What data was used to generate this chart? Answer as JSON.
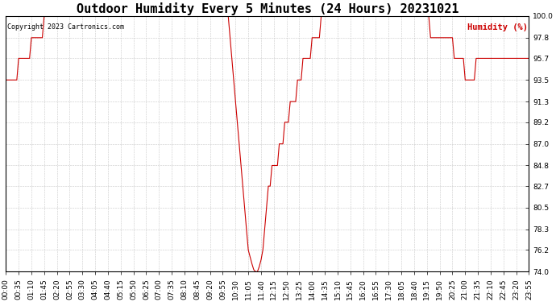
{
  "title": "Outdoor Humidity Every 5 Minutes (24 Hours) 20231021",
  "copyright": "Copyright 2023 Cartronics.com",
  "legend_label": "Humidity (%)",
  "ylim": [
    74.0,
    100.0
  ],
  "yticks": [
    74.0,
    76.2,
    78.3,
    80.5,
    82.7,
    84.8,
    87.0,
    89.2,
    91.3,
    93.5,
    95.7,
    97.8,
    100.0
  ],
  "line_color": "#cc0000",
  "bg_color": "#ffffff",
  "grid_color": "#bbbbbb",
  "title_fontsize": 11,
  "tick_fontsize": 6.5,
  "xtick_step": 7,
  "humidity_data": [
    93.5,
    93.5,
    93.5,
    93.5,
    93.5,
    93.5,
    93.5,
    95.7,
    95.7,
    95.7,
    95.7,
    95.7,
    95.7,
    95.7,
    97.8,
    97.8,
    97.8,
    97.8,
    97.8,
    97.8,
    97.8,
    100.0,
    100.0,
    100.0,
    100.0,
    100.0,
    100.0,
    100.0,
    100.0,
    100.0,
    100.0,
    100.0,
    100.0,
    100.0,
    100.0,
    100.0,
    100.0,
    100.0,
    100.0,
    100.0,
    100.0,
    100.0,
    100.0,
    100.0,
    100.0,
    100.0,
    100.0,
    100.0,
    100.0,
    100.0,
    100.0,
    100.0,
    100.0,
    100.0,
    100.0,
    100.0,
    100.0,
    100.0,
    100.0,
    100.0,
    100.0,
    100.0,
    100.0,
    100.0,
    100.0,
    100.0,
    100.0,
    100.0,
    100.0,
    100.0,
    100.0,
    100.0,
    100.0,
    100.0,
    100.0,
    100.0,
    100.0,
    100.0,
    100.0,
    100.0,
    100.0,
    100.0,
    100.0,
    100.0,
    100.0,
    100.0,
    100.0,
    100.0,
    100.0,
    100.0,
    100.0,
    100.0,
    100.0,
    100.0,
    100.0,
    100.0,
    100.0,
    100.0,
    100.0,
    100.0,
    100.0,
    100.0,
    100.0,
    100.0,
    100.0,
    100.0,
    100.0,
    100.0,
    100.0,
    100.0,
    100.0,
    100.0,
    100.0,
    100.0,
    100.0,
    100.0,
    100.0,
    100.0,
    100.0,
    100.0,
    100.0,
    100.0,
    100.0,
    97.8,
    95.7,
    93.5,
    91.3,
    89.2,
    87.0,
    84.8,
    82.7,
    80.5,
    78.3,
    76.2,
    75.5,
    74.8,
    74.2,
    74.0,
    74.0,
    74.5,
    75.2,
    76.2,
    78.3,
    80.5,
    82.7,
    82.7,
    84.8,
    84.8,
    84.8,
    84.8,
    87.0,
    87.0,
    87.0,
    89.2,
    89.2,
    89.2,
    91.3,
    91.3,
    91.3,
    91.3,
    93.5,
    93.5,
    93.5,
    95.7,
    95.7,
    95.7,
    95.7,
    95.7,
    97.8,
    97.8,
    97.8,
    97.8,
    97.8,
    100.0,
    100.0,
    100.0,
    100.0,
    100.0,
    100.0,
    100.0,
    100.0,
    100.0,
    100.0,
    100.0,
    100.0,
    100.0,
    100.0,
    100.0,
    100.0,
    100.0,
    100.0,
    100.0,
    100.0,
    100.0,
    100.0,
    100.0,
    100.0,
    100.0,
    100.0,
    100.0,
    100.0,
    100.0,
    100.0,
    100.0,
    100.0,
    100.0,
    100.0,
    100.0,
    100.0,
    100.0,
    100.0,
    100.0,
    100.0,
    100.0,
    100.0,
    100.0,
    100.0,
    100.0,
    100.0,
    100.0,
    100.0,
    100.0,
    100.0,
    100.0,
    100.0,
    100.0,
    100.0,
    100.0,
    100.0,
    100.0,
    100.0,
    100.0,
    100.0,
    97.8,
    97.8,
    97.8,
    97.8,
    97.8,
    97.8,
    97.8,
    97.8,
    97.8,
    97.8,
    97.8,
    97.8,
    97.8,
    95.7,
    95.7,
    95.7,
    95.7,
    95.7,
    95.7,
    93.5,
    93.5,
    93.5,
    93.5,
    93.5,
    93.5,
    95.7,
    95.7,
    95.7,
    95.7,
    95.7,
    95.7,
    95.7,
    95.7,
    95.7,
    95.7,
    95.7,
    95.7,
    95.7,
    95.7,
    95.7,
    95.7,
    95.7,
    95.7,
    95.7,
    95.7,
    95.7,
    95.7,
    95.7,
    95.7,
    95.7,
    95.7,
    95.7,
    95.7,
    95.7,
    95.7,
    95.7
  ]
}
